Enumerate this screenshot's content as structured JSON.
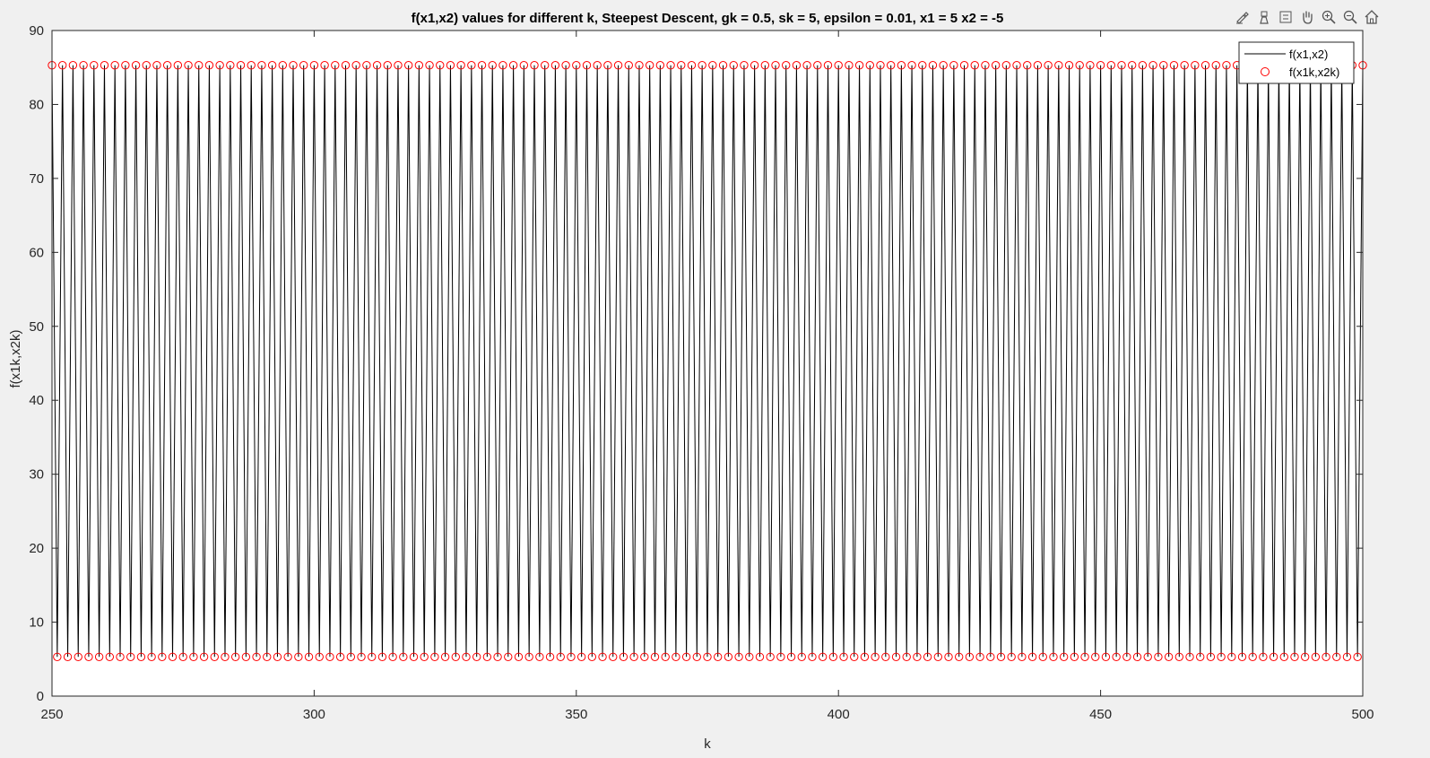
{
  "window": {
    "toolbar": [
      {
        "name": "brush-icon"
      },
      {
        "name": "datatip-icon"
      },
      {
        "name": "insert-legend-icon"
      },
      {
        "name": "pan-icon"
      },
      {
        "name": "zoom-in-icon"
      },
      {
        "name": "zoom-out-icon"
      },
      {
        "name": "home-icon"
      }
    ]
  },
  "chart_data": {
    "type": "line",
    "title": "f(x1,x2) values for different k, Steepest Descent, gk = 0.5, sk = 5, epsilon = 0.01, x1 = 5 x2 = -5",
    "xlabel": "k",
    "ylabel": "f(x1k,x2k)",
    "xlim": [
      250,
      500
    ],
    "ylim": [
      0,
      90
    ],
    "xticks": [
      250,
      300,
      350,
      400,
      450,
      500
    ],
    "yticks": [
      0,
      10,
      20,
      30,
      40,
      50,
      60,
      70,
      80,
      90
    ],
    "grid": false,
    "legend_position": "top-right",
    "series": [
      {
        "name": "f(x1,x2)",
        "style": "line",
        "color": "#000000"
      },
      {
        "name": "f(x1k,x2k)",
        "style": "circle-markers",
        "color": "#ff0000"
      }
    ],
    "pattern": {
      "k_start": 250,
      "k_end": 500,
      "description_values": {
        "high_value": 85.3,
        "low_value": 5.3
      },
      "odd_k_value": 5.3,
      "even_k_value": 85.3
    }
  }
}
